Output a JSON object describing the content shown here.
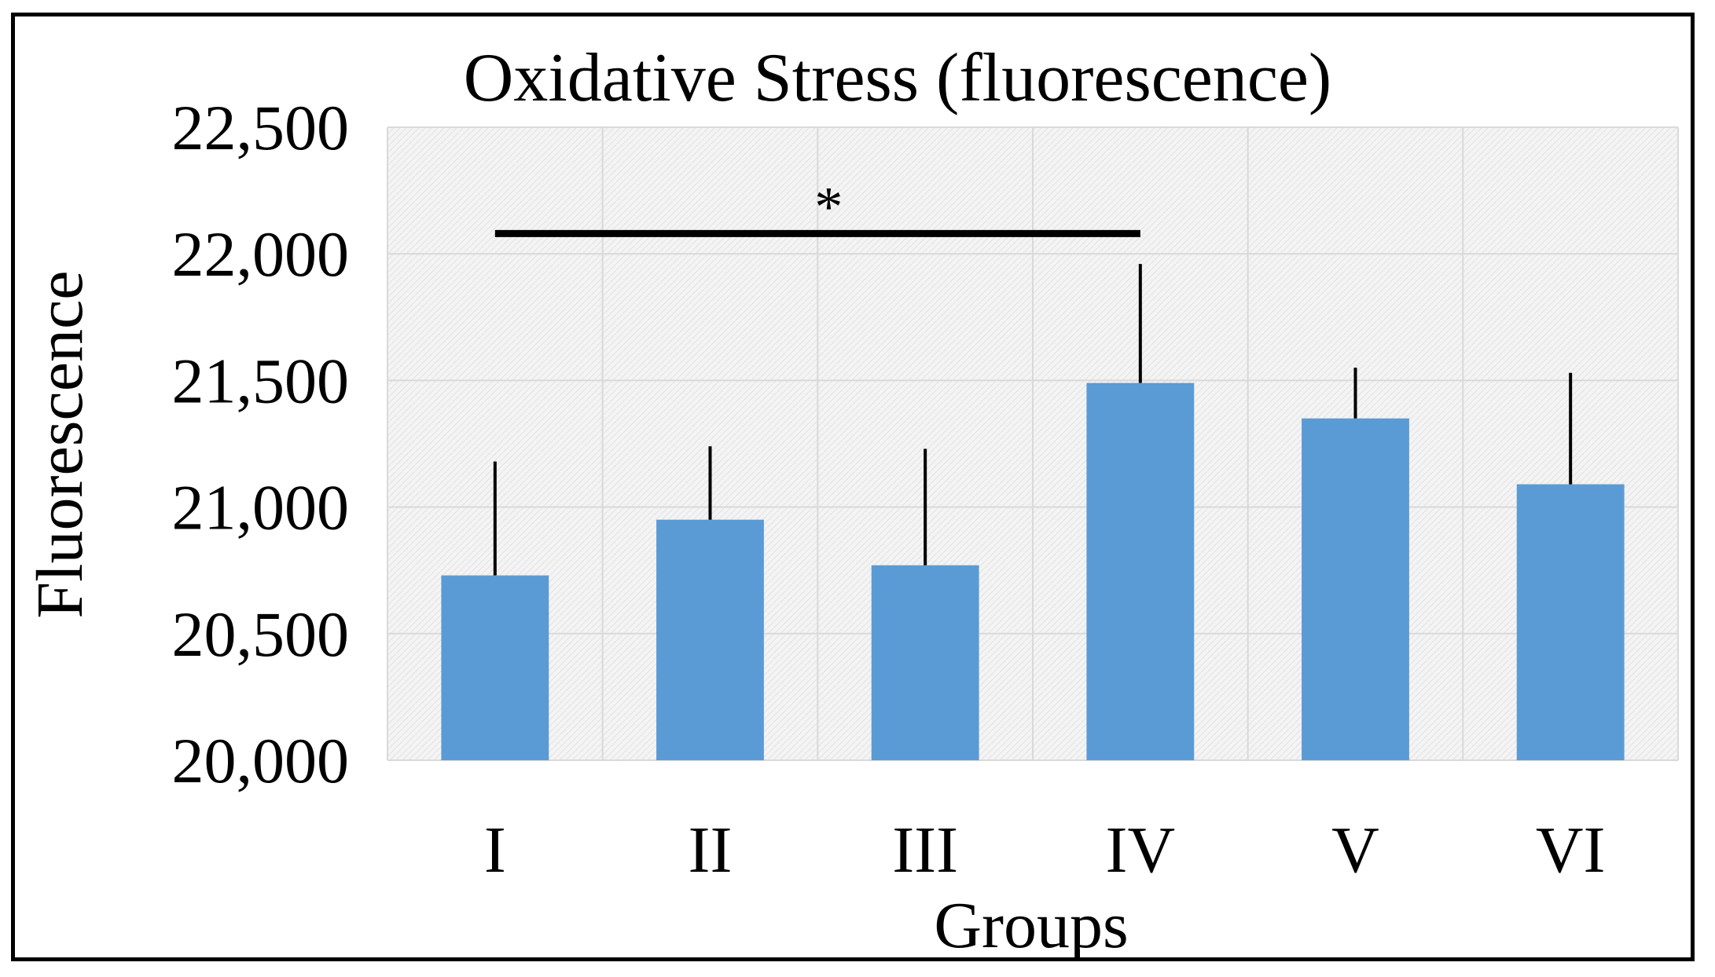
{
  "chart_data": {
    "type": "bar",
    "title": "Oxidative Stress (fluorescence)",
    "xlabel": "Groups",
    "ylabel": "Fluorescence",
    "categories": [
      "I",
      "II",
      "III",
      "IV",
      "V",
      "VI"
    ],
    "series": [
      {
        "name": "Fluorescence",
        "values": [
          20730,
          20950,
          20770,
          21490,
          21350,
          21090
        ],
        "error": [
          450,
          290,
          460,
          470,
          200,
          440
        ]
      }
    ],
    "ylim": [
      20000,
      22500
    ],
    "yticks": [
      20000,
      20500,
      21000,
      21500,
      22000,
      22500
    ],
    "ytick_labels": [
      "20,000",
      "20,500",
      "21,000",
      "21,500",
      "22,000",
      "22,500"
    ],
    "grid": true,
    "significance": {
      "from": "I",
      "to": "IV",
      "label": "*",
      "level": 22080
    },
    "colors": {
      "bar": "#5b9bd5",
      "error_bar": "#000000",
      "gridline": "#d9d9d9",
      "plot_background": "#f2f2f2"
    }
  }
}
